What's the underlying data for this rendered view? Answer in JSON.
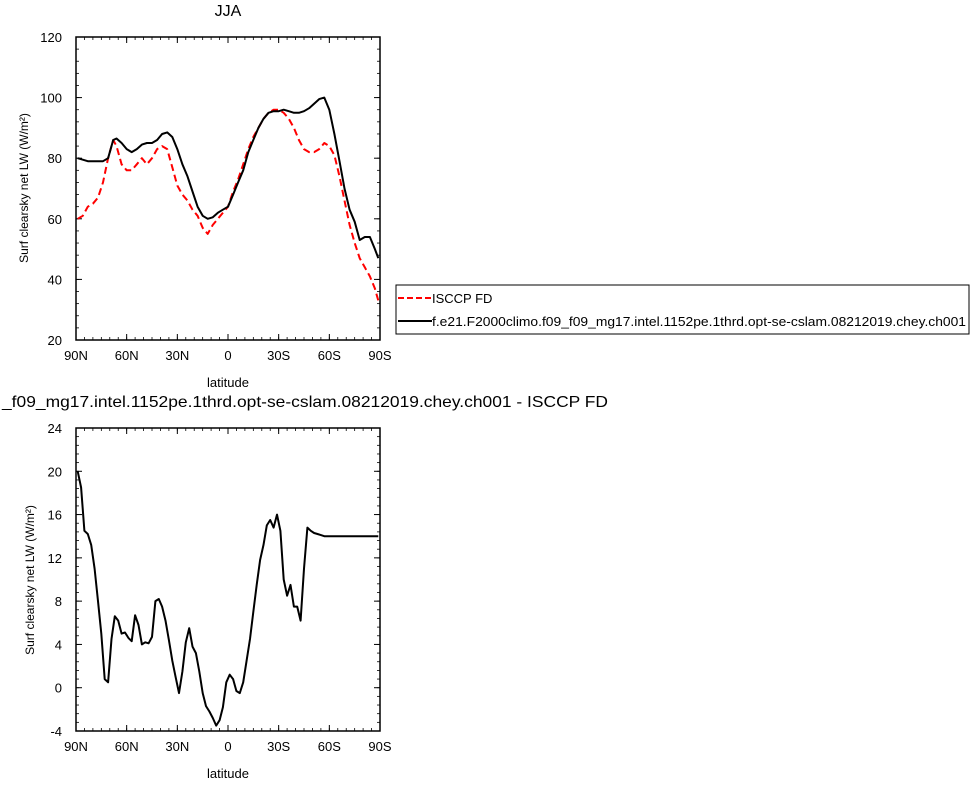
{
  "chart_data": [
    {
      "type": "line",
      "title": "JJA",
      "xlabel": "latitude",
      "ylabel": "Surf clearsky net LW (W/m²)",
      "xlim": [
        -90,
        90
      ],
      "ylim": [
        20,
        120
      ],
      "xticks": [
        {
          "value": -90,
          "label": "90N"
        },
        {
          "value": -60,
          "label": "60N"
        },
        {
          "value": -30,
          "label": "30N"
        },
        {
          "value": 0,
          "label": "0"
        },
        {
          "value": 30,
          "label": "30S"
        },
        {
          "value": 60,
          "label": "60S"
        },
        {
          "value": 90,
          "label": "90S"
        }
      ],
      "yticks": [
        20,
        40,
        60,
        80,
        100,
        120
      ],
      "legend": "right",
      "series": [
        {
          "name": "ISCCP FD",
          "color": "#ff0000",
          "dash": "dashed",
          "x": [
            -89,
            -86,
            -83,
            -80,
            -77,
            -74,
            -71,
            -68,
            -66,
            -63,
            -60,
            -57,
            -54,
            -51,
            -48,
            -45,
            -42,
            -39,
            -36,
            -33,
            -30,
            -27,
            -24,
            -21,
            -18,
            -15,
            -12,
            -9,
            -6,
            -3,
            0,
            3,
            6,
            9,
            12,
            15,
            18,
            21,
            24,
            27,
            30,
            33,
            36,
            39,
            42,
            45,
            48,
            51,
            54,
            57,
            60,
            63,
            66,
            69,
            72,
            75,
            78,
            81,
            84,
            87,
            89
          ],
          "values": [
            60,
            61,
            64,
            65,
            67,
            72,
            80,
            86,
            84,
            78,
            76,
            76,
            78,
            80,
            78,
            80,
            83,
            84,
            83,
            77,
            71,
            68,
            66,
            63,
            61,
            57,
            55,
            58,
            60,
            62,
            64,
            69,
            73,
            78,
            83,
            87,
            90,
            93,
            95,
            96,
            96,
            95,
            93,
            90,
            86,
            83,
            82,
            82,
            83,
            85,
            84,
            81,
            74,
            66,
            58,
            52,
            47,
            44,
            41,
            37,
            33
          ]
        },
        {
          "name": "f.e21.F2000climo.f09_f09_mg17.intel.1152pe.1thrd.opt-se-cslam.08212019.chey.ch001",
          "color": "#000000",
          "dash": "solid",
          "x": [
            -89,
            -86,
            -83,
            -80,
            -77,
            -74,
            -71,
            -68,
            -66,
            -63,
            -60,
            -57,
            -54,
            -51,
            -48,
            -45,
            -42,
            -39,
            -36,
            -33,
            -30,
            -27,
            -24,
            -21,
            -18,
            -15,
            -12,
            -9,
            -6,
            -3,
            0,
            3,
            6,
            9,
            12,
            15,
            18,
            21,
            24,
            27,
            30,
            33,
            36,
            39,
            42,
            45,
            48,
            51,
            54,
            57,
            60,
            63,
            66,
            69,
            72,
            75,
            78,
            81,
            84,
            87,
            89
          ],
          "values": [
            80,
            79.5,
            79,
            79,
            79,
            79,
            80,
            86,
            86.5,
            85,
            83,
            82,
            83,
            84.5,
            85,
            85,
            86,
            88,
            88.5,
            87,
            83,
            78,
            74,
            69,
            64,
            61,
            60,
            60.5,
            62,
            63,
            64,
            68,
            72,
            76,
            82,
            86,
            90,
            93,
            95,
            95.5,
            95.5,
            96,
            95.5,
            95,
            95,
            95.5,
            96.5,
            98,
            99.5,
            100,
            96,
            88,
            79,
            70,
            63,
            59,
            53,
            54,
            54,
            50,
            47
          ]
        }
      ]
    },
    {
      "type": "line",
      "title": "_f09_mg17.intel.1152pe.1thrd.opt-se-cslam.08212019.chey.ch001 - ISCCP FD",
      "xlabel": "latitude",
      "ylabel": "Surf clearsky net LW (W/m²)",
      "xlim": [
        -90,
        90
      ],
      "ylim": [
        -4,
        24
      ],
      "xticks": [
        {
          "value": -90,
          "label": "90N"
        },
        {
          "value": -60,
          "label": "60N"
        },
        {
          "value": -30,
          "label": "30N"
        },
        {
          "value": 0,
          "label": "0"
        },
        {
          "value": 30,
          "label": "30S"
        },
        {
          "value": 60,
          "label": "60S"
        },
        {
          "value": 90,
          "label": "90S"
        }
      ],
      "yticks": [
        -4,
        0,
        4,
        8,
        12,
        16,
        20,
        24
      ],
      "series": [
        {
          "color": "#000000",
          "dash": "solid",
          "x": [
            -89,
            -87,
            -85,
            -83,
            -81,
            -79,
            -77,
            -75,
            -73,
            -71,
            -69,
            -67,
            -65,
            -63,
            -61,
            -59,
            -57,
            -55,
            -53,
            -51,
            -49,
            -47,
            -45,
            -43,
            -41,
            -39,
            -37,
            -35,
            -33,
            -31,
            -29,
            -27,
            -25,
            -23,
            -21,
            -19,
            -17,
            -15,
            -13,
            -11,
            -9,
            -7,
            -5,
            -3,
            -1,
            1,
            3,
            5,
            7,
            9,
            11,
            13,
            15,
            17,
            19,
            21,
            23,
            25,
            27,
            29,
            31,
            33,
            35,
            37,
            39,
            41,
            43,
            45,
            47,
            49,
            51,
            53,
            55,
            57,
            59,
            61,
            63,
            65,
            67,
            69,
            71,
            73,
            75,
            77,
            79,
            81,
            83,
            85,
            87,
            89
          ],
          "values": [
            20,
            18.5,
            14.5,
            14.2,
            13.2,
            11,
            8,
            5,
            0.8,
            0.5,
            4.5,
            6.6,
            6.2,
            5,
            5.1,
            4.6,
            4.3,
            6.7,
            5.8,
            4,
            4.2,
            4.1,
            4.7,
            8,
            8.2,
            7.5,
            6.2,
            4.4,
            2.5,
            1,
            -0.5,
            1.5,
            4.2,
            5.5,
            3.8,
            3.2,
            1.5,
            -0.5,
            -1.7,
            -2.2,
            -2.8,
            -3.5,
            -3,
            -1.8,
            0.5,
            1.2,
            0.8,
            -0.3,
            -0.5,
            0.5,
            2.5,
            4.5,
            7,
            9.5,
            11.8,
            13.2,
            15,
            15.5,
            14.8,
            16,
            14.5,
            10,
            8.5,
            9.5,
            7.5,
            7.5,
            6.2,
            11,
            14.8,
            14.5,
            14.3,
            14.2,
            14.1,
            14,
            14,
            14,
            14,
            14,
            14,
            14,
            14,
            14,
            14,
            14,
            14,
            14,
            14,
            14,
            14,
            14
          ]
        }
      ]
    }
  ]
}
